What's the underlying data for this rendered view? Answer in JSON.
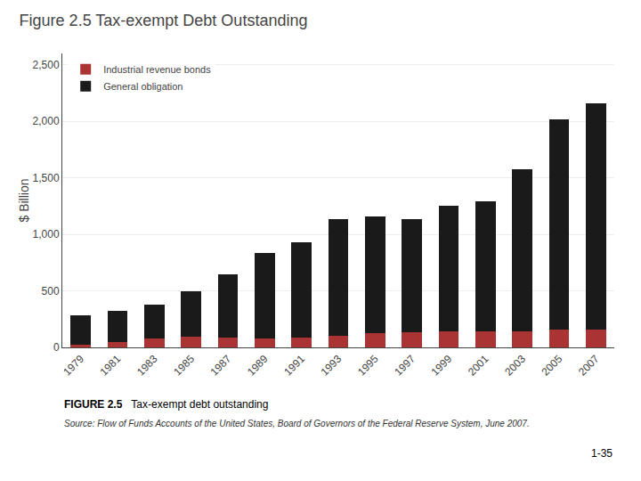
{
  "chart_data": {
    "type": "bar",
    "title": "Figure 2.5 Tax-exempt Debt Outstanding",
    "ylabel": "$ Billion",
    "categories": [
      "1979",
      "1981",
      "1983",
      "1985",
      "1987",
      "1989",
      "1991",
      "1993",
      "1995",
      "1997",
      "1999",
      "2001",
      "2003",
      "2005",
      "2007"
    ],
    "series": [
      {
        "name": "Industrial revenue bonds",
        "color": "#aa3333",
        "values": [
          22,
          45,
          75,
          95,
          88,
          82,
          88,
          105,
          125,
          135,
          145,
          140,
          145,
          155,
          160
        ]
      },
      {
        "name": "General obligation",
        "color": "#1a1a1a",
        "values": [
          265,
          280,
          300,
          400,
          560,
          755,
          840,
          1030,
          1030,
          1000,
          1110,
          1150,
          1430,
          1860,
          2000
        ]
      }
    ],
    "stacked": true,
    "ylim": [
      0,
      2600
    ],
    "yticks": [
      0,
      500,
      {
        "value": 1000,
        "label": "1,000"
      },
      {
        "value": 1500,
        "label": "1,500"
      },
      {
        "value": 2000,
        "label": "2,000"
      },
      {
        "value": 2500,
        "label": "2,500"
      }
    ],
    "grid": true,
    "legend": "upper left",
    "annotations": [
      "FIGURE 2.5",
      "Tax-exempt debt outstanding",
      "Source: Flow of Funds Accounts of the United States, Board of Governors of the Federal Reserve System, June 2007.",
      "1-35"
    ]
  }
}
